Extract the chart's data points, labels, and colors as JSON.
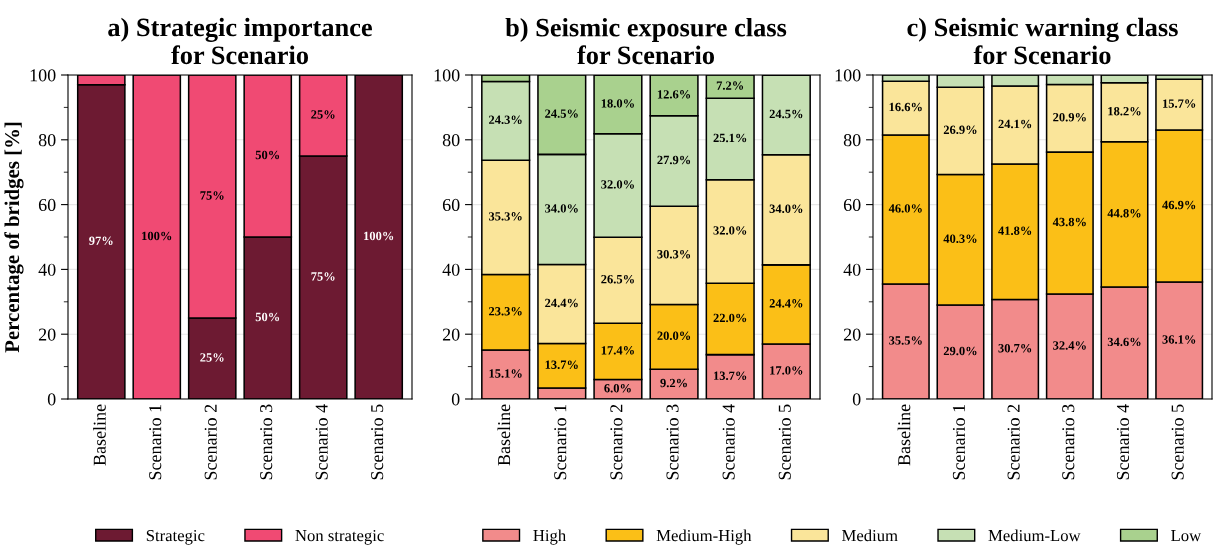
{
  "chart_data": [
    {
      "type": "bar",
      "stacked": true,
      "title": "a) Strategic importance\nfor Scenario",
      "ylabel": "Percentage of bridges [%]",
      "categories": [
        "Baseline",
        "Scenario 1",
        "Scenario 2",
        "Scenario 3",
        "Scenario 4",
        "Scenario 5"
      ],
      "ylim": [
        0,
        100
      ],
      "yticks": [
        0,
        20,
        40,
        60,
        80,
        100
      ],
      "grid": "y",
      "legend": "bottom",
      "series": [
        {
          "name": "Strategic",
          "color": "#6d1a32",
          "values": [
            97,
            0,
            25,
            50,
            75,
            100
          ],
          "value_labels": [
            "97%",
            null,
            "25%",
            "50%",
            "75%",
            "100%"
          ]
        },
        {
          "name": "Non strategic",
          "color": "#f04a73",
          "values": [
            3,
            100,
            75,
            50,
            25,
            0
          ],
          "value_labels": [
            null,
            "100%",
            "75%",
            "50%",
            "25%",
            null
          ]
        }
      ]
    },
    {
      "type": "bar",
      "stacked": true,
      "title": "b) Seismic exposure class\nfor Scenario",
      "categories": [
        "Baseline",
        "Scenario 1",
        "Scenario 2",
        "Scenario 3",
        "Scenario 4",
        "Scenario 5"
      ],
      "ylim": [
        0,
        100
      ],
      "yticks": [
        0,
        20,
        40,
        60,
        80,
        100
      ],
      "grid": "y",
      "legend": "bottom",
      "series": [
        {
          "name": "High",
          "color": "#f28b8b",
          "values": [
            15.1,
            3.4,
            6.0,
            9.2,
            13.7,
            17.0
          ],
          "value_labels": [
            "15.1%",
            null,
            "6.0%",
            "9.2%",
            "13.7%",
            "17.0%"
          ]
        },
        {
          "name": "Medium-High",
          "color": "#fbbf17",
          "values": [
            23.3,
            13.7,
            17.4,
            20.0,
            22.0,
            24.4
          ],
          "value_labels": [
            "23.3%",
            "13.7%",
            "17.4%",
            "20.0%",
            "22.0%",
            "24.4%"
          ]
        },
        {
          "name": "Medium",
          "color": "#fae59a",
          "values": [
            35.3,
            24.4,
            26.5,
            30.3,
            32.0,
            34.0
          ],
          "value_labels": [
            "35.3%",
            "24.4%",
            "26.5%",
            "30.3%",
            "32.0%",
            "34.0%"
          ]
        },
        {
          "name": "Medium-Low",
          "color": "#c6e0b4",
          "values": [
            24.3,
            34.0,
            32.0,
            27.9,
            25.1,
            24.5
          ],
          "value_labels": [
            "24.3%",
            "34.0%",
            "32.0%",
            "27.9%",
            "25.1%",
            "24.5%"
          ]
        },
        {
          "name": "Low",
          "color": "#a9d18e",
          "values": [
            2.0,
            24.5,
            18.0,
            12.6,
            7.2,
            0
          ],
          "value_labels": [
            null,
            "24.5%",
            "18.0%",
            "12.6%",
            "7.2%",
            null
          ]
        }
      ]
    },
    {
      "type": "bar",
      "stacked": true,
      "title": "c) Seismic warning class\nfor Scenario",
      "categories": [
        "Baseline",
        "Scenario 1",
        "Scenario 2",
        "Scenario 3",
        "Scenario 4",
        "Scenario 5"
      ],
      "ylim": [
        0,
        100
      ],
      "yticks": [
        0,
        20,
        40,
        60,
        80,
        100
      ],
      "grid": "y",
      "legend": "bottom",
      "series": [
        {
          "name": "High",
          "color": "#f28b8b",
          "values": [
            35.5,
            29.0,
            30.7,
            32.4,
            34.6,
            36.1
          ],
          "value_labels": [
            "35.5%",
            "29.0%",
            "30.7%",
            "32.4%",
            "34.6%",
            "36.1%"
          ]
        },
        {
          "name": "Medium-High",
          "color": "#fbbf17",
          "values": [
            46.0,
            40.3,
            41.8,
            43.8,
            44.8,
            46.9
          ],
          "value_labels": [
            "46.0%",
            "40.3%",
            "41.8%",
            "43.8%",
            "44.8%",
            "46.9%"
          ]
        },
        {
          "name": "Medium",
          "color": "#fae59a",
          "values": [
            16.6,
            26.9,
            24.1,
            20.9,
            18.2,
            15.7
          ],
          "value_labels": [
            "16.6%",
            "26.9%",
            "24.1%",
            "20.9%",
            "18.2%",
            "15.7%"
          ]
        },
        {
          "name": "Medium-Low",
          "color": "#c6e0b4",
          "values": [
            1.9,
            3.8,
            3.4,
            2.9,
            2.4,
            1.3
          ],
          "value_labels": [
            null,
            null,
            null,
            null,
            null,
            null
          ]
        },
        {
          "name": "Low",
          "color": "#a9d18e",
          "values": [
            0,
            0,
            0,
            0,
            0,
            0
          ],
          "value_labels": [
            null,
            null,
            null,
            null,
            null,
            null
          ]
        }
      ]
    }
  ]
}
